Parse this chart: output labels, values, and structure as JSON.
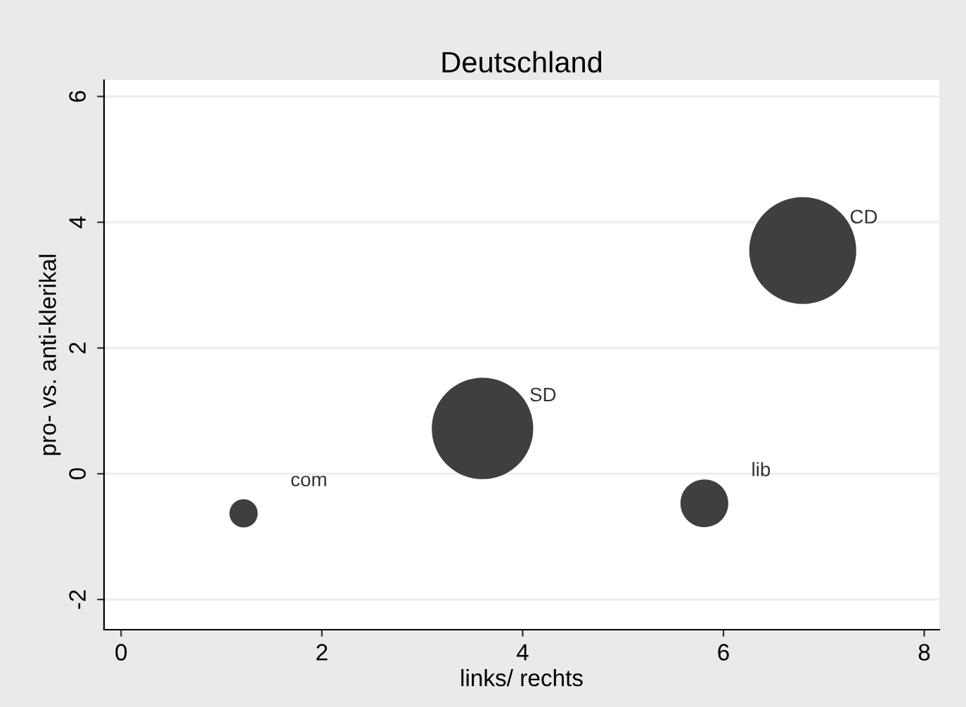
{
  "chart_data": {
    "type": "bubble",
    "title": "Deutschland",
    "xlabel": "links/ rechts",
    "ylabel": "pro- vs. anti-klerikal",
    "x": [
      1.22,
      3.6,
      5.81,
      6.79
    ],
    "values": [
      -0.63,
      0.72,
      -0.47,
      3.55
    ],
    "sizes": [
      0.07,
      0.9,
      0.2,
      1
    ],
    "color": "#3f3f3f",
    "value_labels": [
      "com",
      "SD",
      "lib",
      "CD"
    ],
    "xlim": [
      -0.17,
      8.15
    ],
    "ylim": [
      -2.48,
      6.26
    ],
    "xticks": [
      0,
      2,
      4,
      6,
      8
    ],
    "yticks": [
      -2,
      0,
      2,
      4,
      6
    ],
    "grid": "y"
  }
}
